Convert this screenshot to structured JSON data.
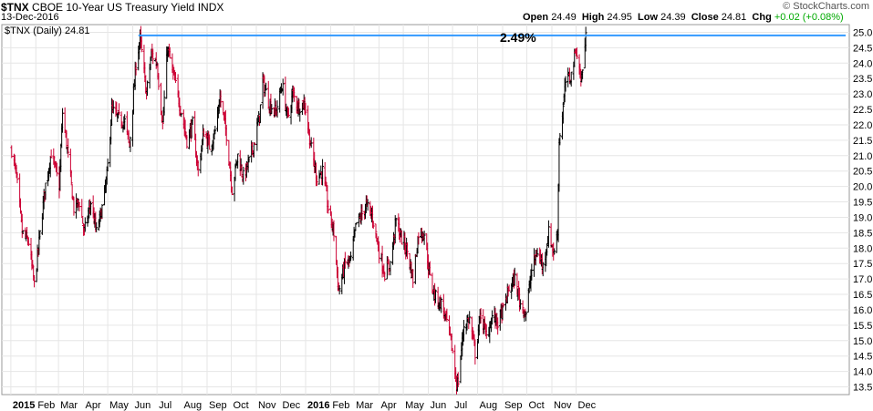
{
  "header": {
    "symbol": "$TNX",
    "name": "CBOE 10-Year US Treasury Yield",
    "exchange": "INDX",
    "date": "13-Dec-2016",
    "open_label": "Open",
    "open": "24.49",
    "high_label": "High",
    "high": "24.95",
    "low_label": "Low",
    "low": "24.39",
    "close_label": "Close",
    "close": "24.81",
    "chg_label": "Chg",
    "chg": "+0.02 (+0.08%)",
    "brand": "© StockCharts.com"
  },
  "chart_data": {
    "type": "ohlc",
    "legend": "$TNX (Daily) 24.81",
    "annotation": "2.49%",
    "annotation_line_value": 24.9,
    "ylim": [
      13.25,
      25.25
    ],
    "yticks": [
      "13.5",
      "14.0",
      "14.5",
      "15.0",
      "15.5",
      "16.0",
      "16.5",
      "17.0",
      "17.5",
      "18.0",
      "18.5",
      "19.0",
      "19.5",
      "20.0",
      "20.5",
      "21.0",
      "21.5",
      "22.0",
      "22.5",
      "23.0",
      "23.5",
      "24.0",
      "24.5",
      "25.0"
    ],
    "xtick_labels": [
      "2015",
      "Feb",
      "Mar",
      "Apr",
      "May",
      "Jun",
      "Jul",
      "Aug",
      "Sep",
      "Oct",
      "Nov",
      "Dec",
      "2016",
      "Feb",
      "Mar",
      "Apr",
      "May",
      "Jun",
      "Jul",
      "Aug",
      "Sep",
      "Oct",
      "Nov",
      "Dec"
    ],
    "xtick_bold": [
      "2015",
      "2016"
    ],
    "up_color": "#000000",
    "down_color": "#cc0033",
    "line_color": "#3399ff",
    "grid": true,
    "price_path": [
      [
        "2015-01-02",
        21.2
      ],
      [
        "2015-01-08",
        20.3
      ],
      [
        "2015-01-15",
        18.5
      ],
      [
        "2015-01-23",
        18.2
      ],
      [
        "2015-01-30",
        16.8
      ],
      [
        "2015-02-05",
        18.2
      ],
      [
        "2015-02-12",
        19.9
      ],
      [
        "2015-02-20",
        21.1
      ],
      [
        "2015-03-02",
        20.0
      ],
      [
        "2015-03-06",
        22.4
      ],
      [
        "2015-03-12",
        21.2
      ],
      [
        "2015-03-20",
        19.3
      ],
      [
        "2015-03-27",
        19.5
      ],
      [
        "2015-04-02",
        18.5
      ],
      [
        "2015-04-10",
        19.5
      ],
      [
        "2015-04-17",
        18.5
      ],
      [
        "2015-04-24",
        19.3
      ],
      [
        "2015-04-30",
        20.3
      ],
      [
        "2015-05-06",
        22.5
      ],
      [
        "2015-05-14",
        22.2
      ],
      [
        "2015-05-22",
        22.1
      ],
      [
        "2015-05-28",
        21.3
      ],
      [
        "2015-06-05",
        24.0
      ],
      [
        "2015-06-10",
        24.8
      ],
      [
        "2015-06-18",
        23.0
      ],
      [
        "2015-06-24",
        24.3
      ],
      [
        "2015-07-01",
        24.0
      ],
      [
        "2015-07-08",
        22.0
      ],
      [
        "2015-07-14",
        24.5
      ],
      [
        "2015-07-22",
        23.5
      ],
      [
        "2015-07-29",
        22.7
      ],
      [
        "2015-08-07",
        21.5
      ],
      [
        "2015-08-14",
        22.0
      ],
      [
        "2015-08-21",
        20.5
      ],
      [
        "2015-08-28",
        21.8
      ],
      [
        "2015-09-04",
        21.3
      ],
      [
        "2015-09-11",
        21.8
      ],
      [
        "2015-09-17",
        22.9
      ],
      [
        "2015-09-25",
        21.7
      ],
      [
        "2015-10-02",
        19.9
      ],
      [
        "2015-10-09",
        21.0
      ],
      [
        "2015-10-16",
        20.3
      ],
      [
        "2015-10-23",
        20.8
      ],
      [
        "2015-10-30",
        21.5
      ],
      [
        "2015-11-05",
        22.3
      ],
      [
        "2015-11-09",
        23.4
      ],
      [
        "2015-11-17",
        22.7
      ],
      [
        "2015-11-25",
        22.4
      ],
      [
        "2015-12-03",
        23.3
      ],
      [
        "2015-12-10",
        22.2
      ],
      [
        "2015-12-16",
        23.0
      ],
      [
        "2015-12-23",
        22.6
      ],
      [
        "2015-12-31",
        22.7
      ],
      [
        "2016-01-08",
        21.2
      ],
      [
        "2016-01-15",
        20.3
      ],
      [
        "2016-01-22",
        20.5
      ],
      [
        "2016-01-29",
        19.3
      ],
      [
        "2016-02-05",
        18.5
      ],
      [
        "2016-02-11",
        16.6
      ],
      [
        "2016-02-19",
        17.5
      ],
      [
        "2016-02-26",
        17.6
      ],
      [
        "2016-03-04",
        18.8
      ],
      [
        "2016-03-09",
        19.0
      ],
      [
        "2016-03-16",
        19.4
      ],
      [
        "2016-03-24",
        19.0
      ],
      [
        "2016-04-01",
        17.9
      ],
      [
        "2016-04-08",
        17.2
      ],
      [
        "2016-04-15",
        17.5
      ],
      [
        "2016-04-22",
        18.9
      ],
      [
        "2016-04-29",
        18.3
      ],
      [
        "2016-05-06",
        17.9
      ],
      [
        "2016-05-13",
        17.0
      ],
      [
        "2016-05-20",
        18.5
      ],
      [
        "2016-05-27",
        18.5
      ],
      [
        "2016-06-03",
        17.0
      ],
      [
        "2016-06-10",
        16.4
      ],
      [
        "2016-06-17",
        16.2
      ],
      [
        "2016-06-24",
        15.6
      ],
      [
        "2016-06-30",
        14.8
      ],
      [
        "2016-07-06",
        13.6
      ],
      [
        "2016-07-08",
        13.7
      ],
      [
        "2016-07-15",
        15.5
      ],
      [
        "2016-07-22",
        15.7
      ],
      [
        "2016-07-29",
        14.6
      ],
      [
        "2016-08-05",
        15.9
      ],
      [
        "2016-08-12",
        15.1
      ],
      [
        "2016-08-19",
        15.8
      ],
      [
        "2016-08-26",
        15.6
      ],
      [
        "2016-09-02",
        16.0
      ],
      [
        "2016-09-09",
        16.7
      ],
      [
        "2016-09-16",
        17.0
      ],
      [
        "2016-09-23",
        16.2
      ],
      [
        "2016-09-30",
        15.9
      ],
      [
        "2016-10-07",
        17.3
      ],
      [
        "2016-10-14",
        17.9
      ],
      [
        "2016-10-21",
        17.4
      ],
      [
        "2016-10-28",
        18.5
      ],
      [
        "2016-11-04",
        17.8
      ],
      [
        "2016-11-08",
        18.6
      ],
      [
        "2016-11-10",
        21.5
      ],
      [
        "2016-11-14",
        22.3
      ],
      [
        "2016-11-18",
        23.4
      ],
      [
        "2016-11-25",
        23.6
      ],
      [
        "2016-12-01",
        24.5
      ],
      [
        "2016-12-07",
        23.4
      ],
      [
        "2016-12-13",
        24.8
      ]
    ]
  }
}
